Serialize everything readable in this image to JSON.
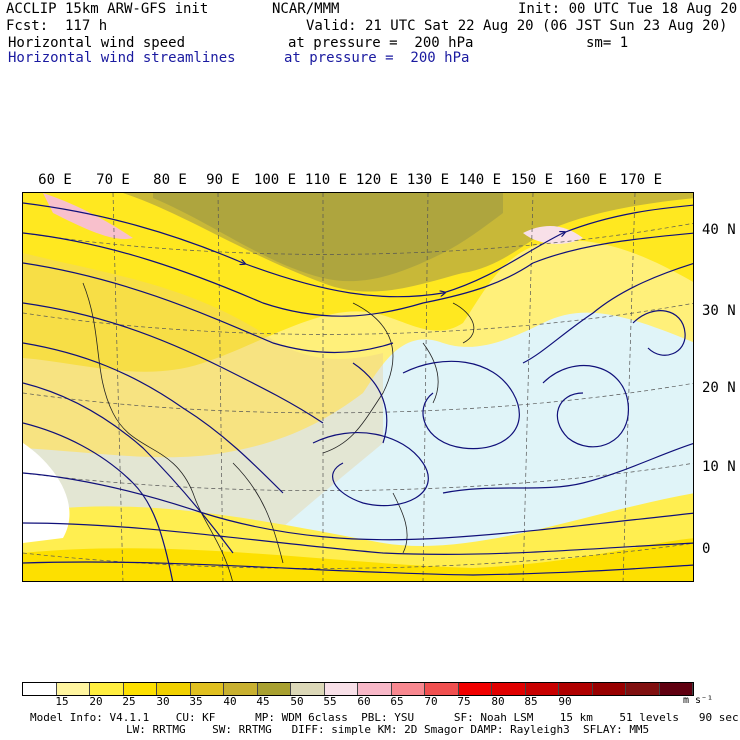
{
  "header": {
    "line1_left": "ACCLIP 15km ARW-GFS init",
    "line1_center": "NCAR/MMM",
    "line1_right": "Init: 00 UTC Tue 18 Aug 20",
    "line2_left": "Fcst:  117 h",
    "line2_right": "Valid: 21 UTC Sat 22 Aug 20 (06 JST Sun 23 Aug 20)",
    "line3_left": "Horizontal wind speed",
    "line3_center": "at pressure =  200 hPa",
    "line3_right": "sm= 1",
    "line4_left": "Horizontal wind streamlines",
    "line4_center": "at pressure =  200 hPa"
  },
  "longitude_labels": [
    "60 E",
    "70 E",
    "80 E",
    "90 E",
    "100 E",
    "110 E",
    "120 E",
    "130 E",
    "140 E",
    "150 E",
    "160 E",
    "170 E"
  ],
  "latitude_labels": [
    "40 N",
    "30 N",
    "20 N",
    "10 N",
    "0"
  ],
  "colorbar": {
    "labels": [
      "15",
      "20",
      "25",
      "30",
      "35",
      "40",
      "45",
      "50",
      "55",
      "60",
      "65",
      "70",
      "75",
      "80",
      "85",
      "90"
    ],
    "unit": "m s⁻¹",
    "colors": [
      "#ffffff",
      "#fff5a0",
      "#ffee40",
      "#fde000",
      "#f0d000",
      "#e0c020",
      "#c8b030",
      "#a8a030",
      "#dcd8b8",
      "#f8e0e8",
      "#f8b8c8",
      "#f88890",
      "#f05050",
      "#f00000",
      "#e00000",
      "#c80000",
      "#b00000",
      "#980000",
      "#801010",
      "#600010"
    ]
  },
  "footer": {
    "line1": "Model Info: V4.1.1    CU: KF      MP: WDM 6class  PBL: YSU      SF: Noah LSM    15 km    51 levels   90 sec",
    "line2": "LW: RRTMG    SW: RRTMG   DIFF: simple KM: 2D Smagor DAMP: Rayleigh3  SFLAY: MM5"
  }
}
